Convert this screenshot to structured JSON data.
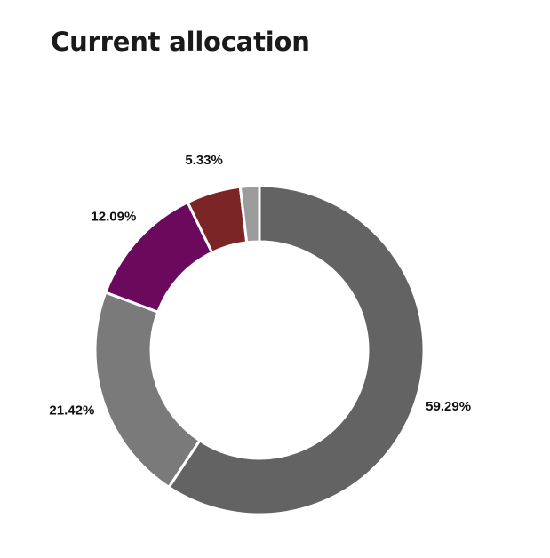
{
  "chart_data": {
    "type": "pie",
    "variant": "donut",
    "title": "Current allocation",
    "slices": [
      {
        "value": 59.29,
        "label": "59.29%",
        "color": "#636363"
      },
      {
        "value": 21.42,
        "label": "21.42%",
        "color": "#7a7a7a"
      },
      {
        "value": 12.09,
        "label": "12.09%",
        "color": "#6b0a5c"
      },
      {
        "value": 5.33,
        "label": "5.33%",
        "color": "#7b2527"
      },
      {
        "value": 1.87,
        "label": "",
        "color": "#9b9b9b"
      }
    ]
  }
}
